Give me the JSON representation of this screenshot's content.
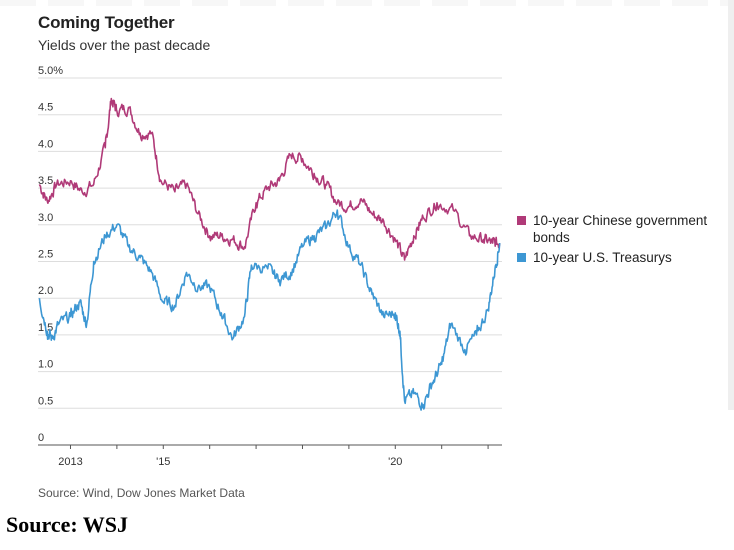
{
  "header": {
    "title": "Coming Together",
    "subtitle": "Yields over the past decade"
  },
  "footer": {
    "source_note": "Source: Wind, Dow Jones Market Data",
    "source_bold": "Source: WSJ"
  },
  "colors": {
    "china": "#b03a78",
    "us": "#3d97d3",
    "grid": "#dddddd",
    "axis": "#555555"
  },
  "chart_data": {
    "type": "line",
    "title": "Coming Together",
    "subtitle": "Yields over the past decade",
    "xlabel": "",
    "ylabel": "",
    "x_tick_labels": [
      "2013",
      "'15",
      "'20"
    ],
    "x_tick_positions": [
      2013,
      2015,
      2020
    ],
    "y_ticks": [
      0,
      0.5,
      1.0,
      1.5,
      2.0,
      2.5,
      3.0,
      3.5,
      4.0,
      4.5,
      5.0
    ],
    "y_tick_labels": [
      "0",
      "0.5",
      "1.0",
      "1.5",
      "2.0",
      "2.5",
      "3.0",
      "3.5",
      "4.0",
      "4.5",
      "5.0%"
    ],
    "xlim": [
      2012.3,
      2022.3
    ],
    "ylim": [
      0,
      5.0
    ],
    "grid": "horizontal",
    "legend_position": "right",
    "series": [
      {
        "name": "10-year Chinese government bonds",
        "color": "#b03a78",
        "points": [
          [
            2012.33,
            3.55
          ],
          [
            2012.5,
            3.32
          ],
          [
            2012.7,
            3.55
          ],
          [
            2013.0,
            3.6
          ],
          [
            2013.25,
            3.45
          ],
          [
            2013.5,
            3.55
          ],
          [
            2013.75,
            4.05
          ],
          [
            2013.88,
            4.72
          ],
          [
            2014.0,
            4.55
          ],
          [
            2014.25,
            4.6
          ],
          [
            2014.5,
            4.25
          ],
          [
            2014.75,
            4.25
          ],
          [
            2014.95,
            3.6
          ],
          [
            2015.25,
            3.45
          ],
          [
            2015.5,
            3.55
          ],
          [
            2015.75,
            3.15
          ],
          [
            2016.0,
            2.85
          ],
          [
            2016.25,
            2.85
          ],
          [
            2016.5,
            2.8
          ],
          [
            2016.75,
            2.7
          ],
          [
            2017.0,
            3.3
          ],
          [
            2017.25,
            3.5
          ],
          [
            2017.5,
            3.6
          ],
          [
            2017.75,
            3.95
          ],
          [
            2018.0,
            3.9
          ],
          [
            2018.25,
            3.7
          ],
          [
            2018.5,
            3.55
          ],
          [
            2018.75,
            3.3
          ],
          [
            2019.0,
            3.25
          ],
          [
            2019.25,
            3.35
          ],
          [
            2019.5,
            3.15
          ],
          [
            2019.75,
            3.05
          ],
          [
            2020.0,
            2.8
          ],
          [
            2020.2,
            2.52
          ],
          [
            2020.4,
            2.85
          ],
          [
            2020.6,
            3.1
          ],
          [
            2020.9,
            3.3
          ],
          [
            2021.25,
            3.2
          ],
          [
            2021.6,
            2.85
          ],
          [
            2021.9,
            2.8
          ],
          [
            2022.1,
            2.75
          ],
          [
            2022.25,
            2.75
          ]
        ]
      },
      {
        "name": "10-year U.S. Treasurys",
        "color": "#3d97d3",
        "points": [
          [
            2012.33,
            2.0
          ],
          [
            2012.5,
            1.55
          ],
          [
            2012.6,
            1.45
          ],
          [
            2012.75,
            1.65
          ],
          [
            2013.0,
            1.75
          ],
          [
            2013.2,
            1.95
          ],
          [
            2013.35,
            1.65
          ],
          [
            2013.5,
            2.5
          ],
          [
            2013.75,
            2.85
          ],
          [
            2014.0,
            3.0
          ],
          [
            2014.25,
            2.7
          ],
          [
            2014.5,
            2.55
          ],
          [
            2014.75,
            2.35
          ],
          [
            2015.0,
            1.95
          ],
          [
            2015.25,
            1.9
          ],
          [
            2015.5,
            2.35
          ],
          [
            2015.75,
            2.15
          ],
          [
            2016.0,
            2.15
          ],
          [
            2016.25,
            1.8
          ],
          [
            2016.5,
            1.45
          ],
          [
            2016.75,
            1.75
          ],
          [
            2016.9,
            2.45
          ],
          [
            2017.25,
            2.4
          ],
          [
            2017.5,
            2.25
          ],
          [
            2017.75,
            2.35
          ],
          [
            2018.0,
            2.7
          ],
          [
            2018.25,
            2.85
          ],
          [
            2018.5,
            2.95
          ],
          [
            2018.75,
            3.2
          ],
          [
            2019.0,
            2.7
          ],
          [
            2019.25,
            2.45
          ],
          [
            2019.5,
            2.05
          ],
          [
            2019.75,
            1.75
          ],
          [
            2020.0,
            1.8
          ],
          [
            2020.1,
            1.55
          ],
          [
            2020.2,
            0.6
          ],
          [
            2020.4,
            0.7
          ],
          [
            2020.6,
            0.55
          ],
          [
            2020.8,
            0.85
          ],
          [
            2021.0,
            1.1
          ],
          [
            2021.2,
            1.65
          ],
          [
            2021.5,
            1.3
          ],
          [
            2021.75,
            1.5
          ],
          [
            2022.0,
            1.85
          ],
          [
            2022.15,
            2.4
          ],
          [
            2022.25,
            2.75
          ]
        ]
      }
    ]
  }
}
